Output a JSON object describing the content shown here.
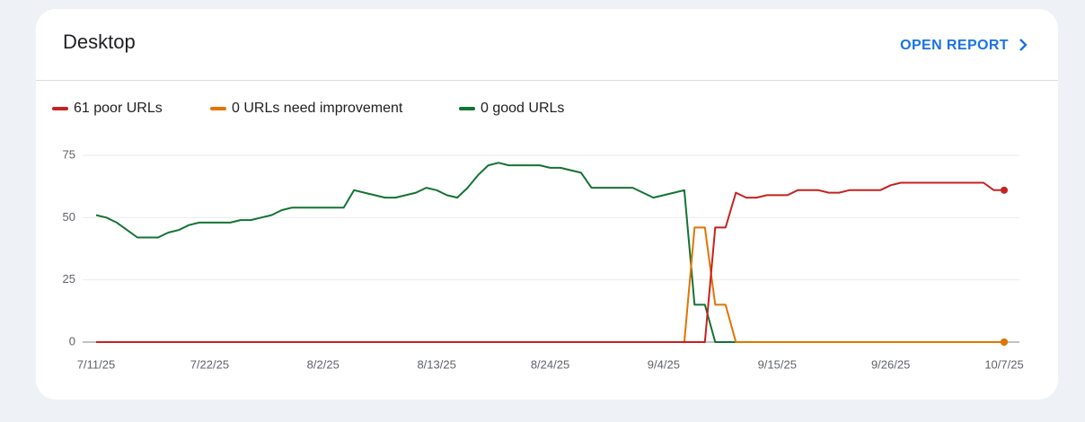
{
  "link_text": "OPEN REPORT",
  "chart_data": {
    "type": "line",
    "title": "Desktop",
    "x": [
      "7/11/25",
      "7/12/25",
      "7/13/25",
      "7/14/25",
      "7/15/25",
      "7/16/25",
      "7/17/25",
      "7/18/25",
      "7/19/25",
      "7/20/25",
      "7/21/25",
      "7/22/25",
      "7/23/25",
      "7/24/25",
      "7/25/25",
      "7/26/25",
      "7/27/25",
      "7/28/25",
      "7/29/25",
      "7/30/25",
      "7/31/25",
      "8/1/25",
      "8/2/25",
      "8/3/25",
      "8/4/25",
      "8/5/25",
      "8/6/25",
      "8/7/25",
      "8/8/25",
      "8/9/25",
      "8/10/25",
      "8/11/25",
      "8/12/25",
      "8/13/25",
      "8/14/25",
      "8/15/25",
      "8/16/25",
      "8/17/25",
      "8/18/25",
      "8/19/25",
      "8/20/25",
      "8/21/25",
      "8/22/25",
      "8/23/25",
      "8/24/25",
      "8/25/25",
      "8/26/25",
      "8/27/25",
      "8/28/25",
      "8/29/25",
      "8/30/25",
      "8/31/25",
      "9/1/25",
      "9/2/25",
      "9/3/25",
      "9/4/25",
      "9/5/25",
      "9/6/25",
      "9/7/25",
      "9/8/25",
      "9/9/25",
      "9/10/25",
      "9/11/25",
      "9/12/25",
      "9/13/25",
      "9/14/25",
      "9/15/25",
      "9/16/25",
      "9/17/25",
      "9/18/25",
      "9/19/25",
      "9/20/25",
      "9/21/25",
      "9/22/25",
      "9/23/25",
      "9/24/25",
      "9/25/25",
      "9/26/25",
      "9/27/25",
      "9/28/25",
      "9/29/25",
      "9/30/25",
      "10/1/25",
      "10/2/25",
      "10/3/25",
      "10/4/25",
      "10/5/25",
      "10/6/25",
      "10/7/25"
    ],
    "series": [
      {
        "name": "61 poor URLs",
        "color": "#c5221f",
        "values": [
          0,
          0,
          0,
          0,
          0,
          0,
          0,
          0,
          0,
          0,
          0,
          0,
          0,
          0,
          0,
          0,
          0,
          0,
          0,
          0,
          0,
          0,
          0,
          0,
          0,
          0,
          0,
          0,
          0,
          0,
          0,
          0,
          0,
          0,
          0,
          0,
          0,
          0,
          0,
          0,
          0,
          0,
          0,
          0,
          0,
          0,
          0,
          0,
          0,
          0,
          0,
          0,
          0,
          0,
          0,
          0,
          0,
          0,
          0,
          0,
          46,
          46,
          60,
          58,
          58,
          59,
          59,
          59,
          61,
          61,
          61,
          60,
          60,
          61,
          61,
          61,
          61,
          63,
          64,
          64,
          64,
          64,
          64,
          64,
          64,
          64,
          64,
          61,
          61
        ]
      },
      {
        "name": "0 URLs need improvement",
        "color": "#e37400",
        "values": [
          0,
          0,
          0,
          0,
          0,
          0,
          0,
          0,
          0,
          0,
          0,
          0,
          0,
          0,
          0,
          0,
          0,
          0,
          0,
          0,
          0,
          0,
          0,
          0,
          0,
          0,
          0,
          0,
          0,
          0,
          0,
          0,
          0,
          0,
          0,
          0,
          0,
          0,
          0,
          0,
          0,
          0,
          0,
          0,
          0,
          0,
          0,
          0,
          0,
          0,
          0,
          0,
          0,
          0,
          0,
          0,
          0,
          0,
          46,
          46,
          15,
          15,
          0,
          0,
          0,
          0,
          0,
          0,
          0,
          0,
          0,
          0,
          0,
          0,
          0,
          0,
          0,
          0,
          0,
          0,
          0,
          0,
          0,
          0,
          0,
          0,
          0,
          0,
          0
        ]
      },
      {
        "name": "0 good URLs",
        "color": "#137333",
        "values": [
          51,
          50,
          48,
          45,
          42,
          42,
          42,
          44,
          45,
          47,
          48,
          48,
          48,
          48,
          49,
          49,
          50,
          51,
          53,
          54,
          54,
          54,
          54,
          54,
          54,
          61,
          60,
          59,
          58,
          58,
          59,
          60,
          62,
          61,
          59,
          58,
          62,
          67,
          71,
          72,
          71,
          71,
          71,
          71,
          70,
          70,
          69,
          68,
          62,
          62,
          62,
          62,
          62,
          60,
          58,
          59,
          60,
          61,
          15,
          15,
          0,
          0,
          0,
          0,
          0,
          0,
          0,
          0,
          0,
          0,
          0,
          0,
          0,
          0,
          0,
          0,
          0,
          0,
          0,
          0,
          0,
          0,
          0,
          0,
          0,
          0,
          0,
          0,
          0
        ]
      }
    ],
    "ylim": [
      0,
      75
    ],
    "yticks": [
      0,
      25,
      50,
      75
    ],
    "grid": true,
    "xticks": [
      "7/11/25",
      "7/22/25",
      "8/2/25",
      "8/13/25",
      "8/24/25",
      "9/4/25",
      "9/15/25",
      "9/26/25",
      "10/7/25"
    ]
  }
}
